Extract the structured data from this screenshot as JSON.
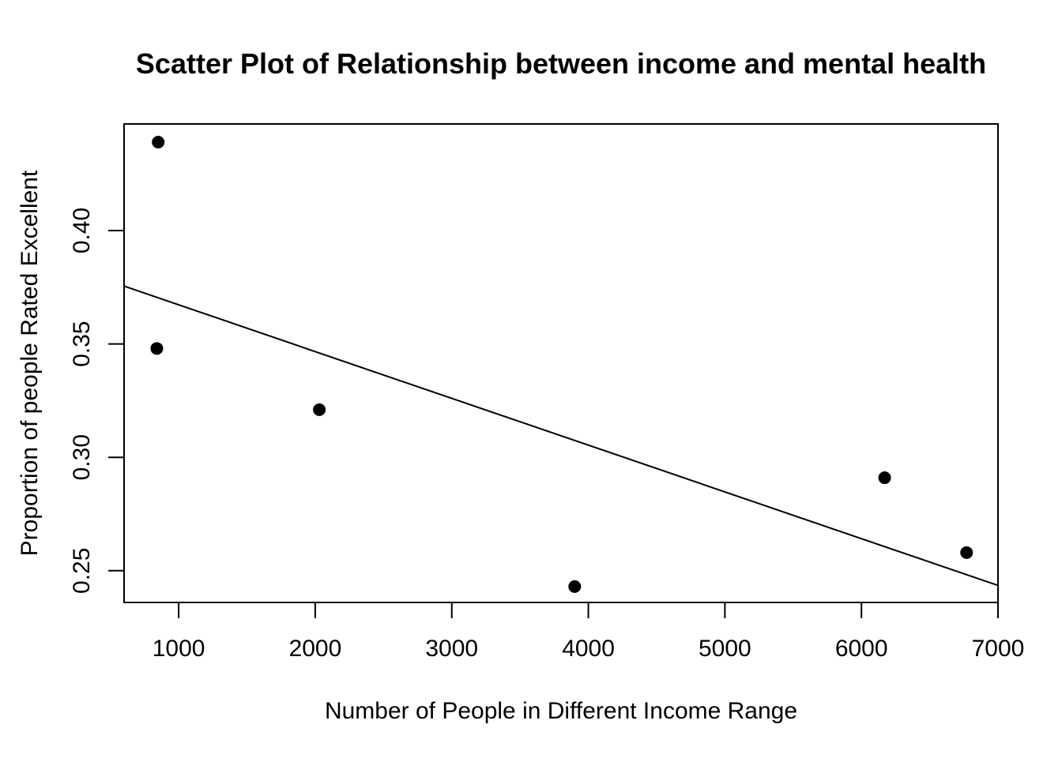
{
  "chart_data": {
    "type": "scatter",
    "title": "Scatter Plot of Relationship between income and mental health",
    "xlabel": "Number of People in Different Income Range",
    "ylabel": "Proportion of people Rated Excellent",
    "xlim": [
      600,
      7000
    ],
    "ylim": [
      0.236,
      0.447
    ],
    "x_ticks": [
      1000,
      2000,
      3000,
      4000,
      5000,
      6000,
      7000
    ],
    "x_tick_labels": [
      "1000",
      "2000",
      "3000",
      "4000",
      "5000",
      "6000",
      "7000"
    ],
    "y_ticks": [
      0.25,
      0.3,
      0.35,
      0.4
    ],
    "y_tick_labels": [
      "0.25",
      "0.30",
      "0.35",
      "0.40"
    ],
    "grid": false,
    "marker_color": "#000000",
    "series": [
      {
        "points": [
          {
            "x": 850,
            "y": 0.439
          },
          {
            "x": 840,
            "y": 0.348
          },
          {
            "x": 2030,
            "y": 0.321
          },
          {
            "x": 3900,
            "y": 0.243
          },
          {
            "x": 6170,
            "y": 0.291
          },
          {
            "x": 6770,
            "y": 0.258
          }
        ]
      }
    ],
    "trend_line": {
      "type": "linear-fit",
      "x": [
        600,
        7000
      ],
      "y": [
        0.3755,
        0.2435
      ]
    }
  }
}
